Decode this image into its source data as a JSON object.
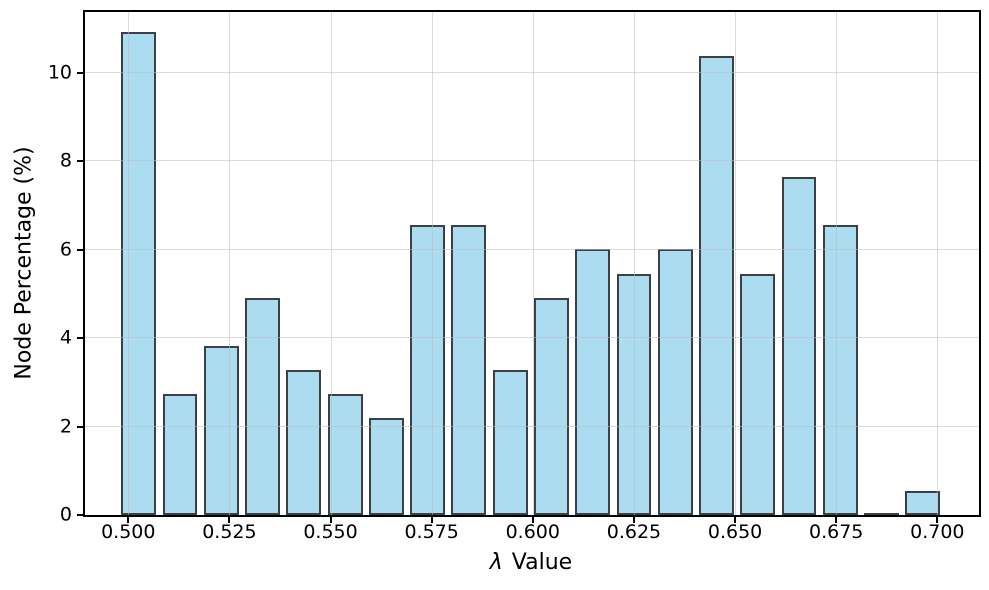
{
  "chart_data": {
    "type": "bar",
    "title": "",
    "xlabel": "λ Value",
    "xlabel_symbol": "λ",
    "xlabel_rest": " Value",
    "ylabel": "Node Percentage (%)",
    "x_ticks": [
      {
        "label": "0.500",
        "value": 0.5
      },
      {
        "label": "0.525",
        "value": 0.525
      },
      {
        "label": "0.550",
        "value": 0.55
      },
      {
        "label": "0.575",
        "value": 0.575
      },
      {
        "label": "0.600",
        "value": 0.6
      },
      {
        "label": "0.625",
        "value": 0.625
      },
      {
        "label": "0.650",
        "value": 0.65
      },
      {
        "label": "0.675",
        "value": 0.675
      },
      {
        "label": "0.700",
        "value": 0.7
      }
    ],
    "y_ticks": [
      {
        "label": "0",
        "value": 0
      },
      {
        "label": "2",
        "value": 2
      },
      {
        "label": "4",
        "value": 4
      },
      {
        "label": "6",
        "value": 6
      },
      {
        "label": "8",
        "value": 8
      },
      {
        "label": "10",
        "value": 10
      }
    ],
    "xlim": [
      0.4893,
      0.7103
    ],
    "ylim": [
      0,
      11.38
    ],
    "grid": true,
    "legend": null,
    "bins": {
      "start": 0.4975,
      "width": 0.0102,
      "bar_relative_width": 0.845
    },
    "values_pct": [
      10.93,
      2.73,
      3.83,
      4.92,
      3.28,
      2.73,
      2.19,
      6.56,
      6.56,
      3.28,
      4.92,
      6.01,
      5.46,
      6.01,
      10.38,
      5.46,
      7.65,
      6.56,
      0,
      0.55
    ],
    "colors": {
      "bar_fill": "#ACDCEF",
      "bar_edge": "#3A4045",
      "grid": "#BEBEBE",
      "spine": "#000000",
      "text": "#000000"
    }
  }
}
